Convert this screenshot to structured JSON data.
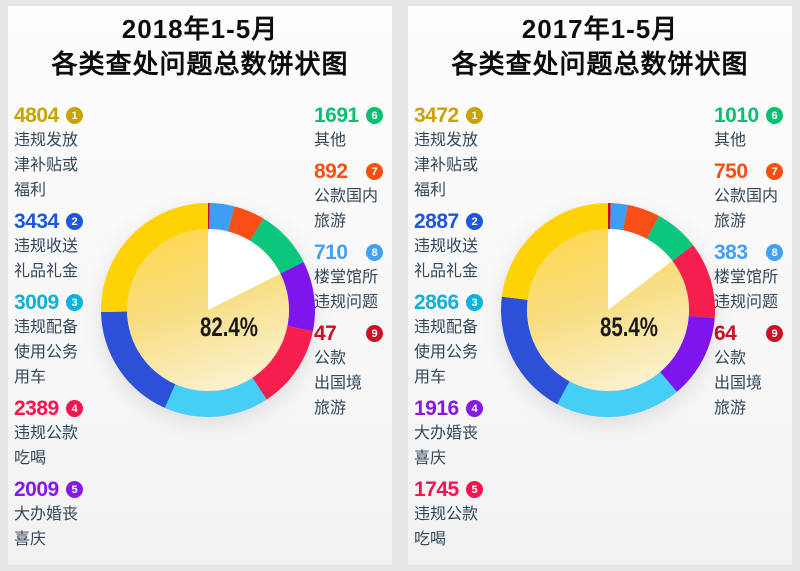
{
  "page": {
    "background_color": "#E6E6E6",
    "card_color": "#FBFBFB",
    "label_text_color": "#33475A",
    "title_text_color": "#0D0D0D"
  },
  "chart_data": [
    {
      "type": "pie",
      "title_line1": "2018年1-5月",
      "title_line2": "各类查处问题总数饼状图",
      "center_label": "82.4%",
      "inner_filled_percent": 82.4,
      "inner_gradient": [
        "#FFD84E",
        "#F8DE85",
        "#FBF1CC"
      ],
      "ring_order": "ranks 9 to 1 clockwise from top",
      "items": [
        {
          "rank": "1",
          "value": 4804,
          "label": "违规发放\n津补贴或\n福利",
          "column": "left",
          "ring_color": "#FFD303",
          "number_color": "#C9A301"
        },
        {
          "rank": "2",
          "value": 3434,
          "label": "违规收送\n礼品礼金",
          "column": "left",
          "ring_color": "#2C50D8",
          "number_color": "#1D57E0"
        },
        {
          "rank": "3",
          "value": 3009,
          "label": "违规配备\n使用公务\n用车",
          "column": "left",
          "ring_color": "#45CFF6",
          "number_color": "#0CB2D9"
        },
        {
          "rank": "4",
          "value": 2389,
          "label": "违规公款\n吃喝",
          "column": "left",
          "ring_color": "#F51E4C",
          "number_color": "#F8134E"
        },
        {
          "rank": "5",
          "value": 2009,
          "label": "大办婚丧\n喜庆",
          "column": "left",
          "ring_color": "#7D15EC",
          "number_color": "#8718EA"
        },
        {
          "rank": "6",
          "value": 1691,
          "label": "其他",
          "column": "right",
          "ring_color": "#0AC77D",
          "number_color": "#0BBF70"
        },
        {
          "rank": "7",
          "value": 892,
          "label": "公款国内\n旅游",
          "column": "right",
          "ring_color": "#F94E16",
          "number_color": "#FB4E12"
        },
        {
          "rank": "8",
          "value": 710,
          "label": "楼堂馆所\n违规问题",
          "column": "right",
          "ring_color": "#3E9EF4",
          "number_color": "#43A1F3"
        },
        {
          "rank": "9",
          "value": 47,
          "label": "公款\n出国境\n旅游",
          "column": "right",
          "ring_color": "#CB0A1E",
          "number_color": "#CB1226"
        }
      ]
    },
    {
      "type": "pie",
      "title_line1": "2017年1-5月",
      "title_line2": "各类查处问题总数饼状图",
      "center_label": "85.4%",
      "inner_filled_percent": 85.4,
      "inner_gradient": [
        "#FFD84E",
        "#F8DE85",
        "#FBF1CC"
      ],
      "ring_order": "ranks 9 to 1 clockwise from top",
      "items": [
        {
          "rank": "1",
          "value": 3472,
          "label": "违规发放\n津补贴或\n福利",
          "column": "left",
          "ring_color": "#FFD303",
          "number_color": "#C9A301"
        },
        {
          "rank": "2",
          "value": 2887,
          "label": "违规收送\n礼品礼金",
          "column": "left",
          "ring_color": "#2C50D8",
          "number_color": "#1D57E0"
        },
        {
          "rank": "3",
          "value": 2866,
          "label": "违规配备\n使用公务\n用车",
          "column": "left",
          "ring_color": "#45CFF6",
          "number_color": "#0CB2D9"
        },
        {
          "rank": "4",
          "value": 1916,
          "label": "大办婚丧\n喜庆",
          "column": "left",
          "ring_color": "#7D15EC",
          "number_color": "#8718EA"
        },
        {
          "rank": "5",
          "value": 1745,
          "label": "违规公款\n吃喝",
          "column": "left",
          "ring_color": "#F51E4C",
          "number_color": "#F8134E"
        },
        {
          "rank": "6",
          "value": 1010,
          "label": "其他",
          "column": "right",
          "ring_color": "#0AC77D",
          "number_color": "#0BBF70"
        },
        {
          "rank": "7",
          "value": 750,
          "label": "公款国内\n旅游",
          "column": "right",
          "ring_color": "#F94E16",
          "number_color": "#FB4E12"
        },
        {
          "rank": "8",
          "value": 383,
          "label": "楼堂馆所\n违规问题",
          "column": "right",
          "ring_color": "#3E9EF4",
          "number_color": "#43A1F3"
        },
        {
          "rank": "9",
          "value": 64,
          "label": "公款\n出国境\n旅游",
          "column": "right",
          "ring_color": "#CB0A1E",
          "number_color": "#CB1226"
        }
      ]
    }
  ]
}
